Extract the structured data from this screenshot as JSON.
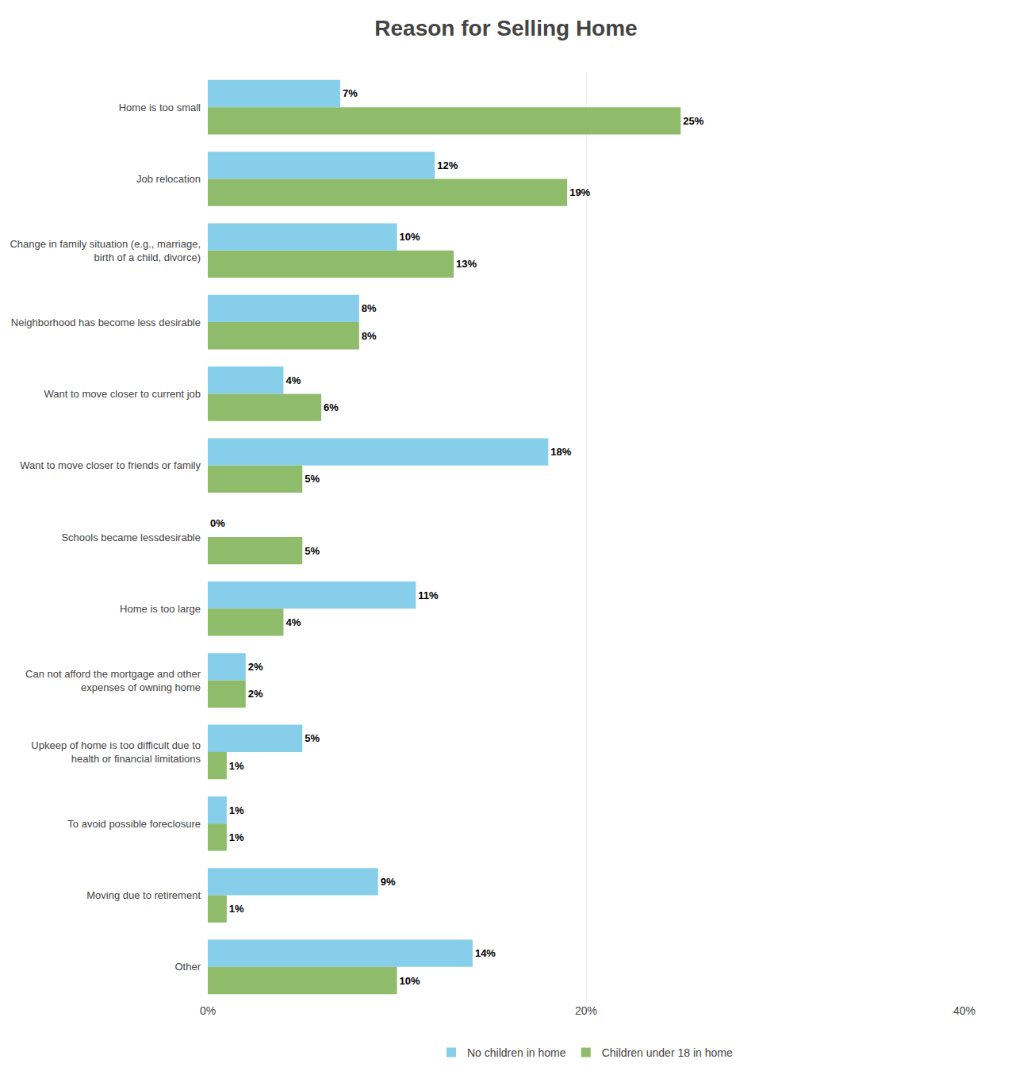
{
  "chart_data": {
    "type": "bar",
    "orientation": "horizontal",
    "title": "Reason for Selling Home",
    "categories": [
      "Home is too small",
      "Job relocation",
      "Change in family situation (e.g., marriage,\nbirth of a child, divorce)",
      "Neighborhood has become less desirable",
      "Want to move closer to current job",
      "Want to move closer to friends or family",
      "Schools became lessdesirable",
      "Home is too large",
      "Can not afford the mortgage and other\nexpenses of owning home",
      "Upkeep of home is too difficult due to\nhealth or financial limitations",
      "To avoid possible foreclosure",
      "Moving due to retirement",
      "Other"
    ],
    "series": [
      {
        "name": "No children in home",
        "color": "#87CEEB",
        "values": [
          7,
          12,
          10,
          8,
          4,
          18,
          0,
          11,
          2,
          5,
          1,
          9,
          14
        ],
        "value_labels": [
          "7%",
          "12%",
          "10%",
          "8%",
          "4%",
          "18%",
          "0%",
          "11%",
          "2%",
          "5%",
          "1%",
          "9%",
          "14%"
        ]
      },
      {
        "name": "Children under 18 in home",
        "color": "#8FBC6A",
        "values": [
          25,
          19,
          13,
          8,
          6,
          5,
          5,
          4,
          2,
          1,
          1,
          1,
          10
        ],
        "value_labels": [
          "25%",
          "19%",
          "13%",
          "8%",
          "6%",
          "5%",
          "5%",
          "4%",
          "2%",
          "1%",
          "1%",
          "1%",
          "10%"
        ]
      }
    ],
    "xlim": [
      0,
      40
    ],
    "xticks": [
      {
        "value": 0,
        "label": "0%"
      },
      {
        "value": 20,
        "label": "20%"
      },
      {
        "value": 40,
        "label": "40%"
      }
    ],
    "grid": true,
    "legend": "bottom",
    "data_labels": true
  }
}
